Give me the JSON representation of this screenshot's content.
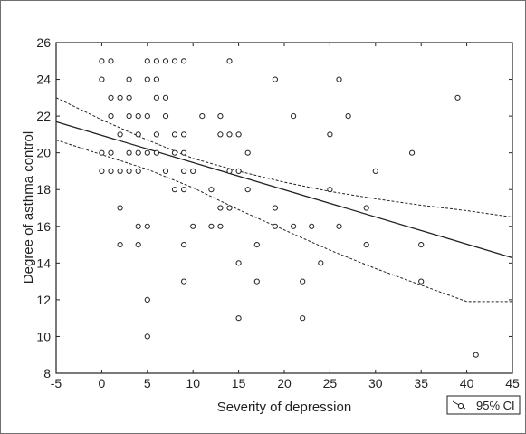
{
  "chart_data": {
    "type": "scatter",
    "title": "",
    "xlabel": "Severity of depression",
    "ylabel": "Degree of asthma control",
    "xlim": [
      -5,
      45
    ],
    "ylim": [
      8,
      26
    ],
    "xticks": [
      -5,
      0,
      5,
      10,
      15,
      20,
      25,
      30,
      35,
      40,
      45
    ],
    "yticks": [
      8,
      10,
      12,
      14,
      16,
      18,
      20,
      22,
      24,
      26
    ],
    "grid": false,
    "legend": {
      "label": "95% CI",
      "position": "bottom-right"
    },
    "points": [
      [
        0,
        25
      ],
      [
        1,
        25
      ],
      [
        5,
        25
      ],
      [
        6,
        25
      ],
      [
        7,
        25
      ],
      [
        8,
        25
      ],
      [
        9,
        25
      ],
      [
        14,
        25
      ],
      [
        0,
        24
      ],
      [
        3,
        24
      ],
      [
        5,
        24
      ],
      [
        6,
        24
      ],
      [
        19,
        24
      ],
      [
        26,
        24
      ],
      [
        1,
        23
      ],
      [
        2,
        23
      ],
      [
        3,
        23
      ],
      [
        6,
        23
      ],
      [
        7,
        23
      ],
      [
        39,
        23
      ],
      [
        1,
        22
      ],
      [
        3,
        22
      ],
      [
        4,
        22
      ],
      [
        5,
        22
      ],
      [
        7,
        22
      ],
      [
        11,
        22
      ],
      [
        13,
        22
      ],
      [
        21,
        22
      ],
      [
        27,
        22
      ],
      [
        2,
        21
      ],
      [
        4,
        21
      ],
      [
        6,
        21
      ],
      [
        8,
        21
      ],
      [
        9,
        21
      ],
      [
        13,
        21
      ],
      [
        14,
        21
      ],
      [
        15,
        21
      ],
      [
        25,
        21
      ],
      [
        0,
        20
      ],
      [
        1,
        20
      ],
      [
        3,
        20
      ],
      [
        4,
        20
      ],
      [
        5,
        20
      ],
      [
        6,
        20
      ],
      [
        8,
        20
      ],
      [
        9,
        20
      ],
      [
        16,
        20
      ],
      [
        34,
        20
      ],
      [
        0,
        19
      ],
      [
        1,
        19
      ],
      [
        2,
        19
      ],
      [
        3,
        19
      ],
      [
        4,
        19
      ],
      [
        7,
        19
      ],
      [
        9,
        19
      ],
      [
        10,
        19
      ],
      [
        14,
        19
      ],
      [
        15,
        19
      ],
      [
        30,
        19
      ],
      [
        8,
        18
      ],
      [
        9,
        18
      ],
      [
        12,
        18
      ],
      [
        16,
        18
      ],
      [
        25,
        18
      ],
      [
        2,
        17
      ],
      [
        13,
        17
      ],
      [
        14,
        17
      ],
      [
        19,
        17
      ],
      [
        29,
        17
      ],
      [
        4,
        16
      ],
      [
        5,
        16
      ],
      [
        10,
        16
      ],
      [
        12,
        16
      ],
      [
        13,
        16
      ],
      [
        19,
        16
      ],
      [
        21,
        16
      ],
      [
        23,
        16
      ],
      [
        26,
        16
      ],
      [
        2,
        15
      ],
      [
        4,
        15
      ],
      [
        9,
        15
      ],
      [
        17,
        15
      ],
      [
        29,
        15
      ],
      [
        35,
        15
      ],
      [
        15,
        14
      ],
      [
        24,
        14
      ],
      [
        9,
        13
      ],
      [
        17,
        13
      ],
      [
        22,
        13
      ],
      [
        35,
        13
      ],
      [
        5,
        12
      ],
      [
        15,
        11
      ],
      [
        22,
        11
      ],
      [
        5,
        10
      ],
      [
        41,
        9
      ]
    ],
    "regression": {
      "intercept": 20.95,
      "slope": -0.148
    },
    "ci_upper": [
      [
        -5,
        23.0
      ],
      [
        0,
        21.8
      ],
      [
        5,
        20.7
      ],
      [
        10,
        19.7
      ],
      [
        15,
        19.0
      ],
      [
        20,
        18.4
      ],
      [
        25,
        17.9
      ],
      [
        30,
        17.5
      ],
      [
        35,
        17.15
      ],
      [
        40,
        16.85
      ],
      [
        45,
        16.5
      ]
    ],
    "ci_lower": [
      [
        -5,
        20.7
      ],
      [
        0,
        19.9
      ],
      [
        5,
        19.1
      ],
      [
        10,
        18.1
      ],
      [
        15,
        16.9
      ],
      [
        20,
        15.8
      ],
      [
        25,
        14.7
      ],
      [
        30,
        13.7
      ],
      [
        35,
        12.8
      ],
      [
        40,
        11.9
      ],
      [
        45,
        11.9
      ]
    ]
  }
}
